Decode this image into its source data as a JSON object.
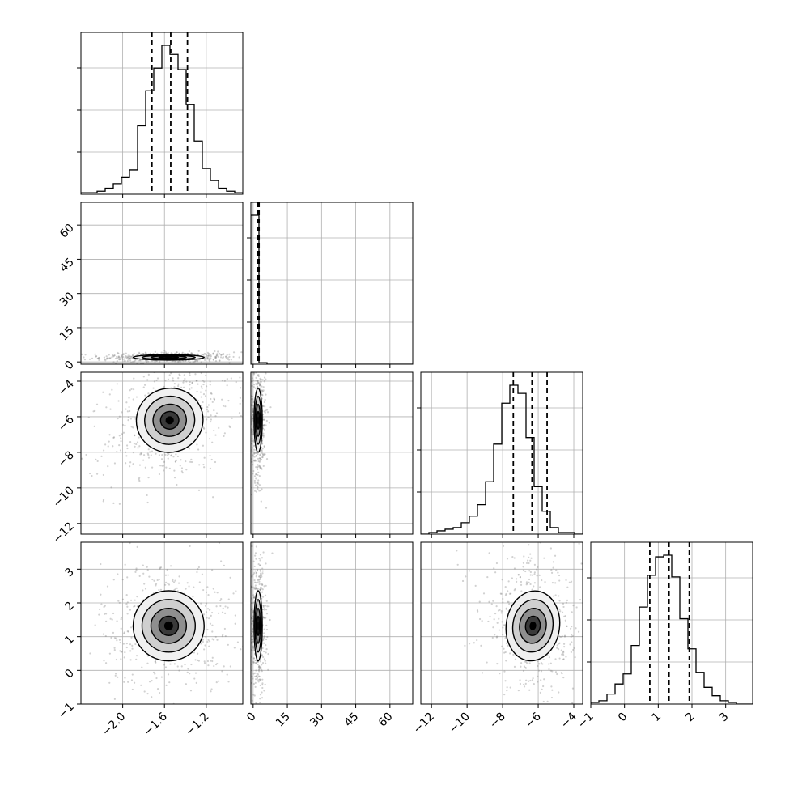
{
  "chart_data": {
    "type": "corner",
    "grid": true,
    "parameters": [
      {
        "xlim": [
          -2.4,
          -0.85
        ],
        "ticks": [
          -2.0,
          -1.6,
          -1.2
        ],
        "tick_labels": [
          "−2.0",
          "−1.6",
          "−1.2"
        ],
        "quantiles": [
          -1.72,
          -1.54,
          -1.38
        ],
        "histogram": [
          1,
          1,
          2,
          4,
          7,
          11,
          16,
          45,
          68,
          83,
          98,
          92,
          82,
          59,
          35,
          17,
          9,
          4,
          2,
          1
        ]
      },
      {
        "xlim": [
          -1,
          70
        ],
        "ticks": [
          0,
          15,
          30,
          45,
          60
        ],
        "tick_labels": [
          "0",
          "15",
          "30",
          "45",
          "60"
        ],
        "quantiles": [
          2.0,
          2.3,
          2.6
        ],
        "histogram": [
          100,
          1,
          0,
          0,
          0,
          0,
          0,
          0,
          0,
          0,
          0,
          0,
          0,
          0,
          0,
          0,
          0,
          0,
          0,
          0
        ]
      },
      {
        "xlim": [
          -12.6,
          -3.5
        ],
        "ticks": [
          -12,
          -10,
          -8,
          -6,
          -4
        ],
        "tick_labels": [
          "−12",
          "−10",
          "−8",
          "−6",
          "−4"
        ],
        "quantiles": [
          -7.4,
          -6.35,
          -5.5
        ],
        "histogram": [
          0,
          1,
          2,
          3,
          4,
          7,
          11,
          18,
          32,
          55,
          80,
          91,
          86,
          59,
          29,
          14,
          4,
          1,
          1,
          0
        ]
      },
      {
        "xlim": [
          -1,
          3.8
        ],
        "ticks": [
          -1,
          0,
          1,
          2,
          3
        ],
        "tick_labels": [
          "−1",
          "0",
          "1",
          "2",
          "3"
        ],
        "quantiles": [
          0.75,
          1.32,
          1.92
        ],
        "histogram": [
          1,
          2,
          6,
          12,
          18,
          35,
          58,
          77,
          88,
          89,
          76,
          51,
          33,
          19,
          10,
          5,
          2,
          1,
          0,
          0
        ]
      }
    ],
    "pairs": [
      {
        "x": 0,
        "y": 1,
        "center": [
          -1.56,
          2.0
        ],
        "spread": [
          0.17,
          0.6
        ],
        "tilt": 0
      },
      {
        "x": 0,
        "y": 2,
        "center": [
          -1.55,
          -6.2
        ],
        "spread": [
          0.16,
          0.9
        ],
        "tilt": 0.35
      },
      {
        "x": 0,
        "y": 3,
        "center": [
          -1.56,
          1.32
        ],
        "spread": [
          0.17,
          0.52
        ],
        "tilt": 0
      },
      {
        "x": 1,
        "y": 2,
        "center": [
          2.2,
          -6.2
        ],
        "spread": [
          0.9,
          0.9
        ],
        "tilt": 0
      },
      {
        "x": 1,
        "y": 3,
        "center": [
          2.2,
          1.32
        ],
        "spread": [
          0.9,
          0.52
        ],
        "tilt": 0
      },
      {
        "x": 2,
        "y": 3,
        "center": [
          -6.3,
          1.32
        ],
        "spread": [
          0.75,
          0.52
        ],
        "tilt": -0.2
      }
    ]
  }
}
